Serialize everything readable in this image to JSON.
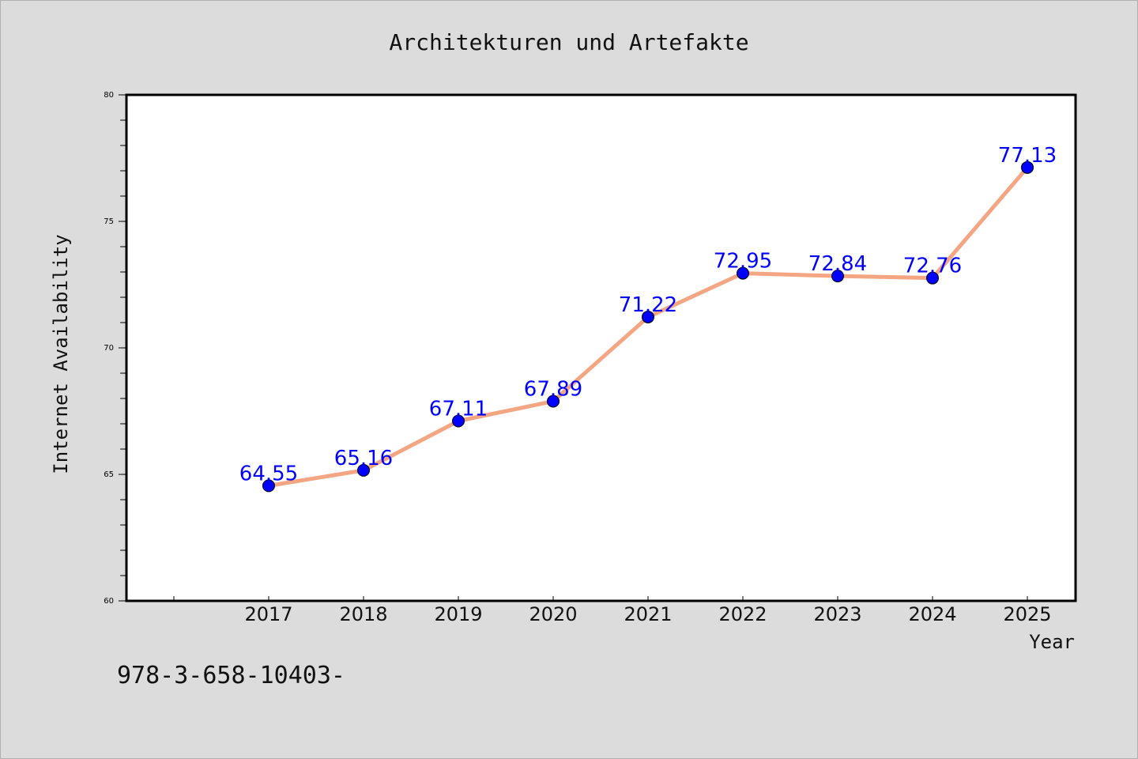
{
  "chart_data": {
    "type": "line",
    "title": "Architekturen und Artefakte",
    "xlabel": "Year",
    "ylabel": "Internet Availability",
    "categories": [
      "2017",
      "2018",
      "2019",
      "2020",
      "2021",
      "2022",
      "2023",
      "2024",
      "2025"
    ],
    "series": [
      {
        "values": [
          64.55,
          65.16,
          67.11,
          67.89,
          71.22,
          72.95,
          72.84,
          72.76,
          77.13
        ],
        "line_color": "#f4a582",
        "marker_color": "#0000ff"
      }
    ],
    "data_labels": [
      "64.55",
      "65.16",
      "67.11",
      "67.89",
      "71.22",
      "72.95",
      "72.84",
      "72.76",
      "77.13"
    ],
    "ylim": [
      60,
      80
    ],
    "yticks": [
      "60",
      "65",
      "70",
      "75",
      "80"
    ],
    "grid": false,
    "legend": "none"
  },
  "footer": {
    "text": "978-3-658-10403-"
  },
  "colors": {
    "background": "#dcdcdc",
    "plot_background": "#ffffff",
    "line": "#f4a582",
    "marker": "#0000ff",
    "data_label": "#0000ff"
  }
}
